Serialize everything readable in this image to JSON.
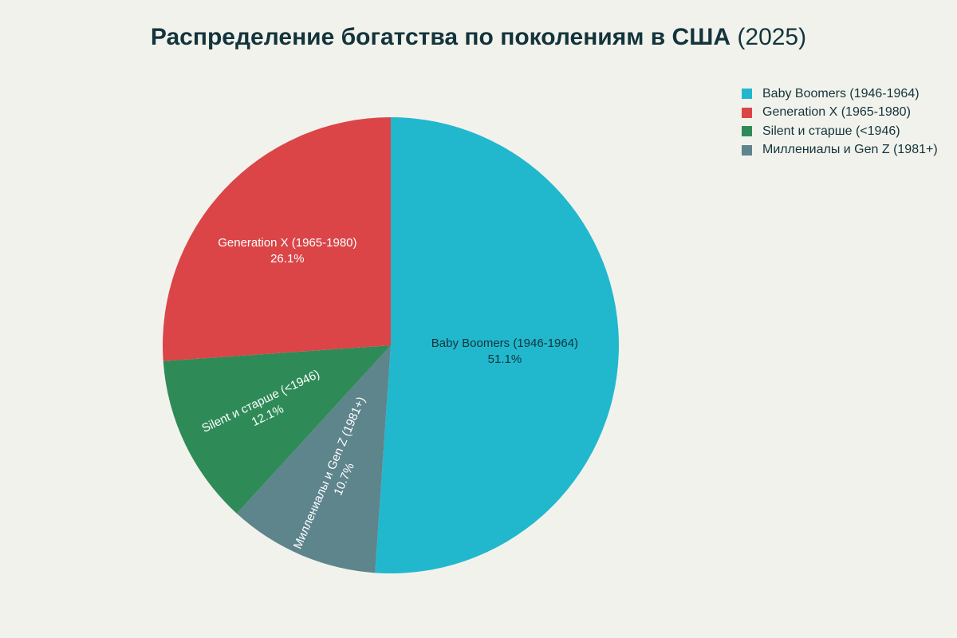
{
  "chart_data": {
    "type": "pie",
    "title": "Распределение богатства по поколениям в США",
    "title_year": "(2025)",
    "slices": [
      {
        "label": "Baby Boomers (1946-1964)",
        "value": 51.1,
        "value_label": "51.1%",
        "color": "#21b8ce",
        "label_color": "#13343b"
      },
      {
        "label": "Миллениалы и Gen Z (1981+)",
        "value": 10.7,
        "value_label": "10.7%",
        "color": "#5e848c",
        "label_color": "#ffffff"
      },
      {
        "label": "Silent и старше (<1946)",
        "value": 12.1,
        "value_label": "12.1%",
        "color": "#2e8b57",
        "label_color": "#ffffff"
      },
      {
        "label": "Generation X (1965-1980)",
        "value": 26.1,
        "value_label": "26.1%",
        "color": "#db4548",
        "label_color": "#ffffff"
      }
    ],
    "legend": [
      {
        "label": "Baby Boomers (1946-1964)",
        "color": "#21b8ce"
      },
      {
        "label": "Generation X (1965-1980)",
        "color": "#db4548"
      },
      {
        "label": "Silent и старше (<1946)",
        "color": "#2e8b57"
      },
      {
        "label": "Миллениалы и Gen Z (1981+)",
        "color": "#5e848c"
      }
    ],
    "legend_position": "top-right",
    "direction": "clockwise",
    "start": "top"
  }
}
